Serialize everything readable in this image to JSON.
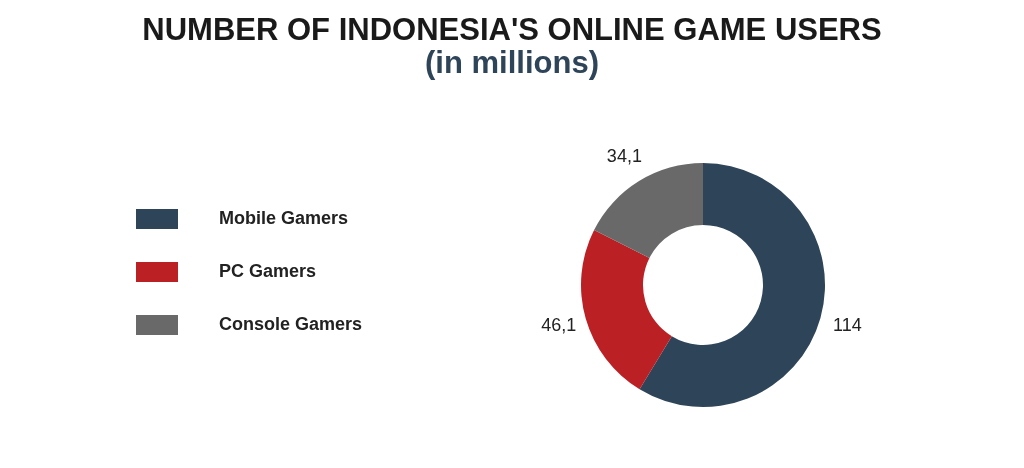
{
  "chart_data": {
    "type": "donut",
    "title": "NUMBER OF INDONESIA'S ONLINE GAME USERS",
    "subtitle": "(in millions)",
    "categories": [
      "Mobile Gamers",
      "PC Gamers",
      "Console Gamers"
    ],
    "values": [
      114,
      46.1,
      34.1
    ],
    "value_labels": [
      "114",
      "46,1",
      "34,1"
    ],
    "colors": [
      "#2e4459",
      "#bb2124",
      "#696969"
    ],
    "legend": "left"
  }
}
